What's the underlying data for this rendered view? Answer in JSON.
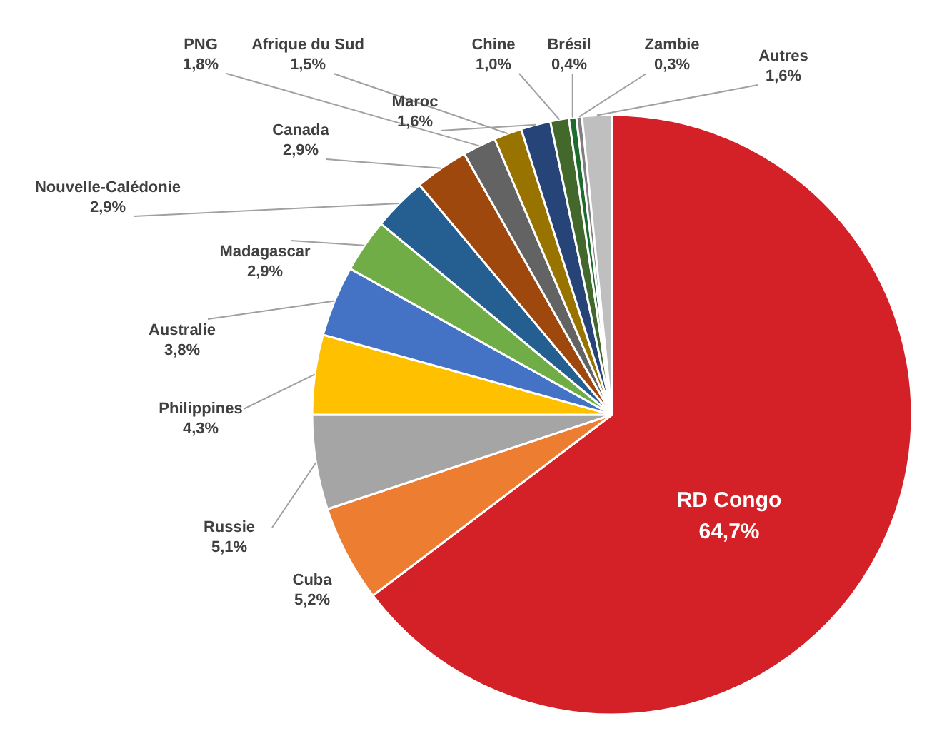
{
  "chart_data": {
    "type": "pie",
    "categories": [
      "RD Congo",
      "Cuba",
      "Russie",
      "Philippines",
      "Australie",
      "Madagascar",
      "Nouvelle-Calédonie",
      "Canada",
      "PNG",
      "Afrique du Sud",
      "Maroc",
      "Chine",
      "Brésil",
      "Zambie",
      "Autres"
    ],
    "values": [
      64.7,
      5.2,
      5.1,
      4.3,
      3.8,
      2.9,
      2.9,
      2.9,
      1.8,
      1.5,
      1.6,
      1.0,
      0.4,
      0.3,
      1.6
    ],
    "value_labels": [
      "64,7%",
      "5,2%",
      "5,1%",
      "4,3%",
      "3,8%",
      "2,9%",
      "2,9%",
      "2,9%",
      "1,8%",
      "1,5%",
      "1,6%",
      "1,0%",
      "0,4%",
      "0,3%",
      "1,6%"
    ],
    "colors": [
      "#d42027",
      "#ed7d31",
      "#a5a5a5",
      "#ffc000",
      "#4472c4",
      "#70ad47",
      "#255e91",
      "#9e480e",
      "#636363",
      "#997300",
      "#264478",
      "#43682b",
      "#1f6b2e",
      "#7f7f7f",
      "#bfbfbf"
    ]
  }
}
